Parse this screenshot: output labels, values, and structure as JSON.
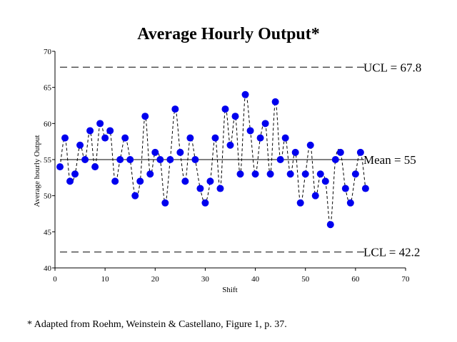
{
  "chart_data": {
    "type": "line",
    "title": "Average Hourly Output*",
    "xlabel": "Shift",
    "ylabel": "Average hourly Output",
    "xlim": [
      0,
      70
    ],
    "ylim": [
      40,
      70
    ],
    "xticks": [
      0,
      10,
      20,
      30,
      40,
      50,
      60,
      70
    ],
    "yticks": [
      40,
      45,
      50,
      55,
      60,
      65,
      70
    ],
    "grid": false,
    "series": [
      {
        "x": [
          1,
          2,
          3,
          4,
          5,
          6,
          7,
          8,
          9,
          10,
          11,
          12,
          13,
          14,
          15,
          16,
          17,
          18,
          19,
          20,
          21,
          22,
          23,
          24,
          25,
          26,
          27,
          28,
          29,
          30,
          31,
          32,
          33,
          34,
          35,
          36,
          37,
          38,
          39,
          40,
          41,
          42,
          43,
          44,
          45,
          46,
          47,
          48,
          49,
          50,
          51,
          52,
          53,
          54,
          55,
          56,
          57,
          58,
          59,
          60,
          61,
          62
        ],
        "values": [
          54,
          58,
          52,
          53,
          57,
          55,
          59,
          54,
          60,
          58,
          59,
          52,
          55,
          58,
          55,
          50,
          52,
          61,
          53,
          56,
          55,
          49,
          55,
          62,
          56,
          52,
          58,
          55,
          51,
          49,
          52,
          58,
          51,
          62,
          57,
          61,
          53,
          64,
          59,
          53,
          58,
          60,
          53,
          63,
          55,
          58,
          53,
          56,
          49,
          53,
          57,
          50,
          53,
          52,
          46,
          55,
          56,
          51,
          49,
          53,
          56,
          51
        ]
      }
    ],
    "reference_lines": [
      {
        "label": "UCL = 67.8",
        "value": 67.8,
        "style": "dashed"
      },
      {
        "label": "Mean = 55",
        "value": 55,
        "style": "solid"
      },
      {
        "label": "LCL = 42.2",
        "value": 42.2,
        "style": "dashed"
      }
    ],
    "footnote": "* Adapted from Roehm, Weinstein & Castellano, Figure 1, p. 37.",
    "colors": {
      "marker": "#0000ee",
      "line": "#000000",
      "text": "#000000"
    }
  }
}
